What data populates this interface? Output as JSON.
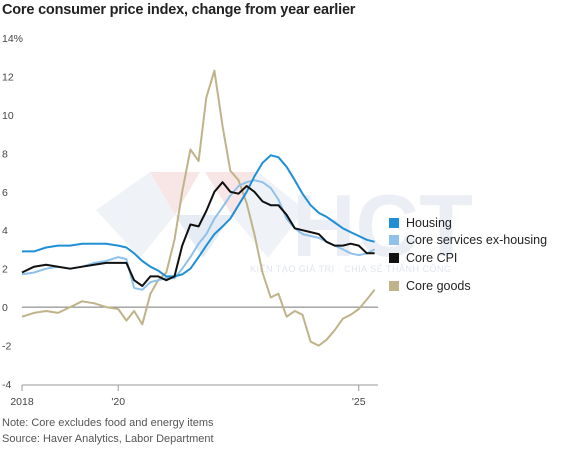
{
  "title": "Core consumer price index, change from year earlier",
  "notes": {
    "note": "Note: Core excludes food and energy items",
    "source": "Source: Haver Analytics, Labor Department"
  },
  "watermark": {
    "logo": "HCT",
    "tagline": "KIẾN TẠO GIÁ TRỊ · CHIA SẺ THÀNH CÔNG"
  },
  "chart_data": {
    "type": "line",
    "ylim": [
      -4,
      14
    ],
    "yticks": [
      -4,
      -2,
      0,
      2,
      4,
      6,
      8,
      10,
      12,
      14
    ],
    "ytick_labels": [
      "-4",
      "-2",
      "0",
      "2",
      "4",
      "6",
      "8",
      "10",
      "12",
      "14%"
    ],
    "xlim": [
      2018.0,
      2025.4
    ],
    "xticks": [
      2018,
      2020,
      2025
    ],
    "xtick_labels": [
      "2018",
      "'20",
      "'25"
    ],
    "grid": false,
    "legend_position": "right",
    "x": [
      2018.0,
      2018.25,
      2018.5,
      2018.75,
      2019.0,
      2019.25,
      2019.5,
      2019.75,
      2020.0,
      2020.17,
      2020.33,
      2020.5,
      2020.67,
      2020.83,
      2021.0,
      2021.17,
      2021.33,
      2021.5,
      2021.67,
      2021.83,
      2022.0,
      2022.17,
      2022.33,
      2022.5,
      2022.67,
      2022.83,
      2023.0,
      2023.17,
      2023.33,
      2023.5,
      2023.67,
      2023.83,
      2024.0,
      2024.17,
      2024.33,
      2024.5,
      2024.67,
      2024.83,
      2025.0,
      2025.17,
      2025.33
    ],
    "series": [
      {
        "name": "Housing",
        "color": "#1f8fd6",
        "values": [
          2.9,
          2.9,
          3.1,
          3.2,
          3.2,
          3.3,
          3.3,
          3.3,
          3.2,
          3.1,
          2.8,
          2.4,
          2.1,
          1.9,
          1.6,
          1.6,
          1.7,
          2.0,
          2.6,
          3.2,
          3.8,
          4.2,
          4.6,
          5.3,
          6.0,
          6.8,
          7.5,
          7.9,
          7.8,
          7.3,
          6.6,
          5.9,
          5.3,
          4.9,
          4.7,
          4.4,
          4.1,
          3.9,
          3.7,
          3.5,
          3.4
        ]
      },
      {
        "name": "Core services ex-housing",
        "color": "#8fc1ea",
        "values": [
          1.7,
          1.8,
          2.0,
          2.1,
          2.0,
          2.1,
          2.3,
          2.4,
          2.6,
          2.5,
          1.0,
          0.9,
          1.3,
          1.4,
          1.5,
          1.5,
          2.0,
          2.6,
          3.3,
          3.8,
          4.6,
          5.2,
          5.8,
          6.3,
          6.5,
          6.6,
          6.5,
          6.2,
          5.6,
          4.6,
          4.1,
          3.8,
          3.7,
          3.6,
          3.4,
          3.2,
          3.0,
          2.8,
          2.7,
          2.8,
          3.0
        ]
      },
      {
        "name": "Core CPI",
        "color": "#111111",
        "values": [
          1.8,
          2.1,
          2.2,
          2.1,
          2.0,
          2.1,
          2.2,
          2.3,
          2.3,
          2.3,
          1.4,
          1.1,
          1.6,
          1.6,
          1.4,
          1.6,
          3.2,
          4.3,
          4.2,
          5.0,
          6.0,
          6.5,
          6.0,
          5.9,
          6.3,
          6.0,
          5.5,
          5.3,
          5.3,
          4.8,
          4.1,
          4.0,
          3.9,
          3.8,
          3.4,
          3.2,
          3.2,
          3.3,
          3.2,
          2.8,
          2.8
        ]
      },
      {
        "name": "Core goods",
        "color": "#bfb38a",
        "values": [
          -0.5,
          -0.3,
          -0.2,
          -0.3,
          0.0,
          0.3,
          0.2,
          0.0,
          -0.1,
          -0.7,
          -0.2,
          -0.9,
          0.7,
          1.4,
          1.8,
          3.5,
          6.0,
          8.2,
          7.6,
          10.9,
          12.3,
          9.4,
          7.1,
          6.6,
          5.4,
          3.8,
          1.8,
          0.5,
          0.7,
          -0.5,
          -0.2,
          -0.4,
          -1.8,
          -2.0,
          -1.7,
          -1.2,
          -0.6,
          -0.4,
          -0.1,
          0.4,
          0.9
        ]
      }
    ]
  }
}
